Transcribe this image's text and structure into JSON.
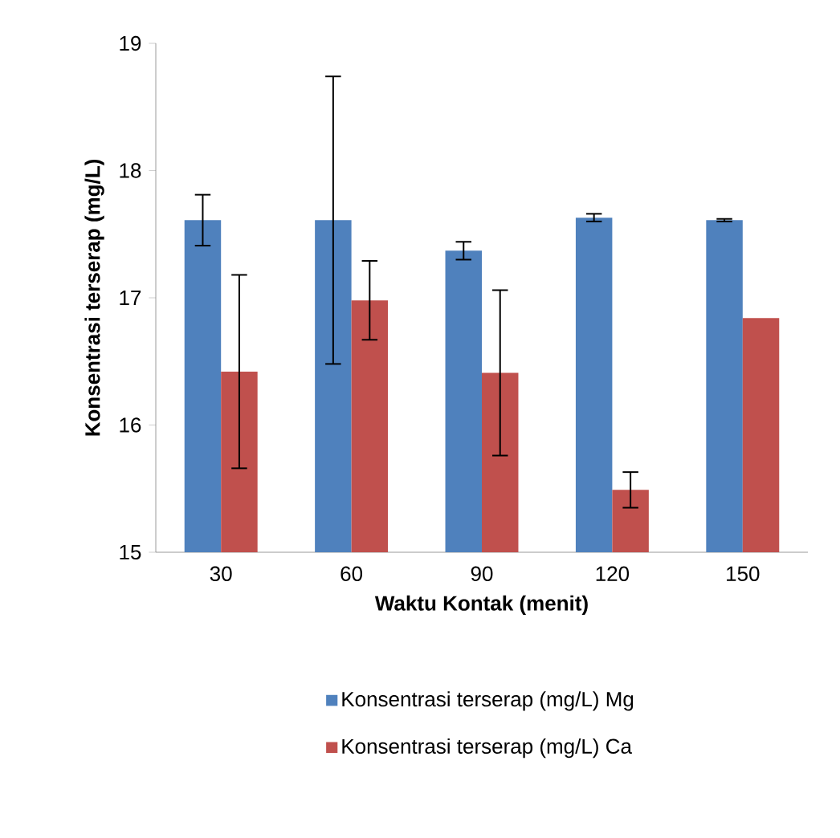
{
  "chart_data": {
    "type": "bar",
    "xlabel": "Waktu Kontak (menit)",
    "ylabel": "Konsentrasi terserap (mg/L)",
    "categories": [
      "30",
      "60",
      "90",
      "120",
      "150"
    ],
    "series": [
      {
        "name": "Konsentrasi terserap (mg/L) Mg",
        "color": "#4f81bd",
        "values": [
          17.61,
          17.61,
          17.37,
          17.63,
          17.61
        ],
        "errors": [
          0.2,
          1.13,
          0.07,
          0.03,
          0.01
        ]
      },
      {
        "name": "Konsentrasi terserap (mg/L) Ca",
        "color": "#c0504d",
        "values": [
          16.42,
          16.98,
          16.41,
          15.49,
          16.84
        ],
        "errors": [
          0.76,
          0.31,
          0.65,
          0.14,
          null
        ]
      }
    ],
    "ylim": [
      15,
      19
    ],
    "yticks": [
      15,
      16,
      17,
      18,
      19
    ],
    "grid": false,
    "legend": "bottom"
  }
}
